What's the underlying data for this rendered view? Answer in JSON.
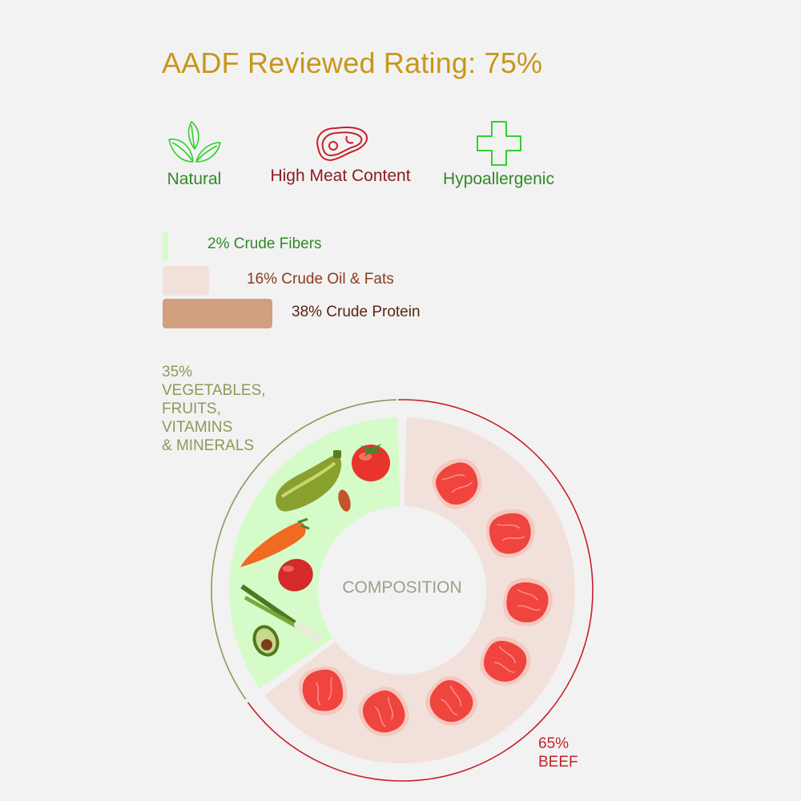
{
  "title": "AADF Reviewed Rating: 75%",
  "badges": [
    {
      "label": "Natural",
      "icon": "leaves-icon",
      "color": "#2f8a24"
    },
    {
      "label": "High Meat Content",
      "icon": "steak-icon",
      "color": "#8a1d23"
    },
    {
      "label": "Hypoallergenic",
      "icon": "cross-icon",
      "color": "#2f8a24"
    }
  ],
  "nutrients": [
    {
      "label": "2% Crude Fibers",
      "percent": 2,
      "color": "#d5fbc8"
    },
    {
      "label": "16% Crude Oil & Fats",
      "percent": 16,
      "color": "#f2e1db"
    },
    {
      "label": "38% Crude Protein",
      "percent": 38,
      "color": "#d09f80"
    }
  ],
  "composition": {
    "center_label": "COMPOSITION",
    "segments": [
      {
        "pct": "35%",
        "lines": [
          "VEGETABLES,",
          "FRUITS,",
          "VITAMINS",
          "& MINERALS"
        ],
        "value": 35,
        "color": "#d5fbc8",
        "ring_color": "#8a9a58"
      },
      {
        "pct": "65%",
        "lines": [
          "BEEF"
        ],
        "value": 65,
        "color": "#f2e1db",
        "ring_color": "#c8202a"
      }
    ]
  },
  "chart_data": {
    "type": "pie",
    "title": "",
    "categories": [
      "VEGETABLES, FRUITS, VITAMINS & MINERALS",
      "BEEF"
    ],
    "values": [
      35,
      65
    ]
  }
}
